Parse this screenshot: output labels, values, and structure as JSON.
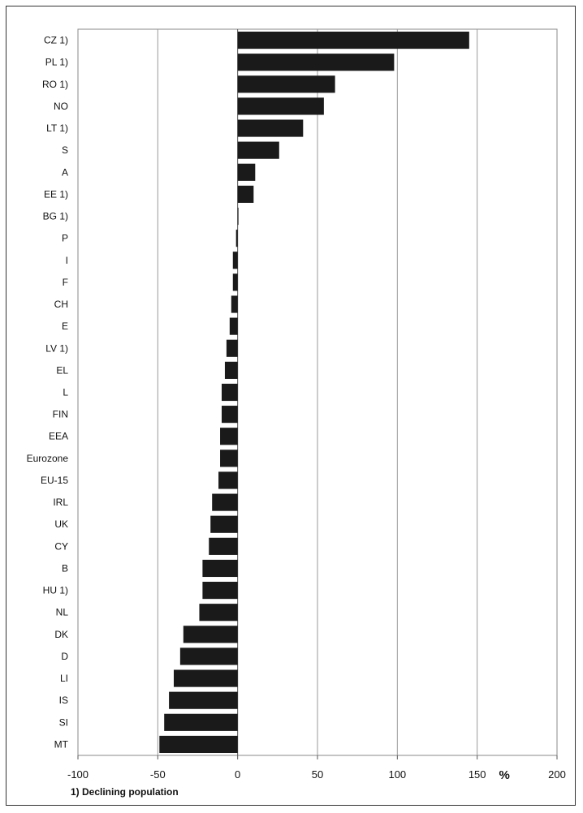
{
  "chart_data": {
    "type": "bar",
    "orientation": "horizontal",
    "categories": [
      "CZ 1)",
      "PL 1)",
      "RO 1)",
      "NO",
      "LT 1)",
      "S",
      "A",
      "EE 1)",
      "BG 1)",
      "P",
      "I",
      "F",
      "CH",
      "E",
      "LV 1)",
      "EL",
      "L",
      "FIN",
      "EEA",
      "Eurozone",
      "EU-15",
      "IRL",
      "UK",
      "CY",
      "B",
      "HU 1)",
      "NL",
      "DK",
      "D",
      "LI",
      "IS",
      "SI",
      "MT"
    ],
    "values": [
      145,
      98,
      61,
      54,
      41,
      26,
      11,
      10,
      0,
      -1,
      -3,
      -3,
      -4,
      -5,
      -7,
      -8,
      -10,
      -10,
      -11,
      -11,
      -12,
      -16,
      -17,
      -18,
      -22,
      -22,
      -24,
      -34,
      -36,
      -40,
      -43,
      -46,
      -49
    ],
    "xlim": [
      -100,
      200
    ],
    "xticks": [
      -100,
      -50,
      0,
      50,
      100,
      150,
      200
    ],
    "xtick_labels": [
      "-100",
      "-50",
      "0",
      "50",
      "100",
      "150",
      "200"
    ],
    "unit_label": "%",
    "grid": true,
    "bar_color": "#1a1a1a",
    "footnote": "1) Declining population"
  }
}
